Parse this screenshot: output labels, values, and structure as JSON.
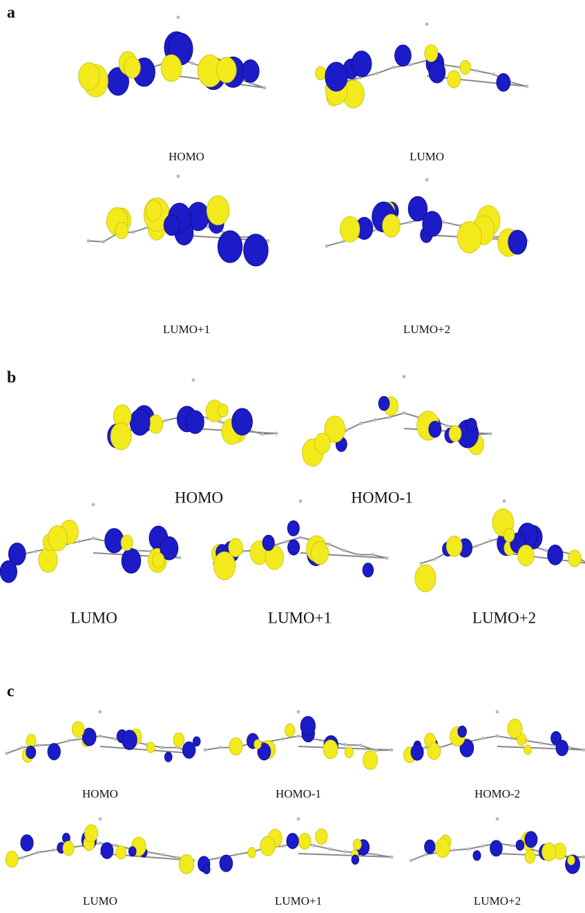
{
  "panels": [
    {
      "label": "a",
      "orbitals": [
        "HOMO",
        "LUMO",
        "LUMO+1",
        "LUMO+2"
      ]
    },
    {
      "label": "b",
      "orbitals": [
        "HOMO",
        "HOMO-1",
        "LUMO",
        "LUMO+1",
        "LUMO+2"
      ]
    },
    {
      "label": "c",
      "orbitals": [
        "HOMO",
        "HOMO-1",
        "HOMO-2",
        "LUMO",
        "LUMO+1",
        "LUMO+2"
      ]
    }
  ]
}
